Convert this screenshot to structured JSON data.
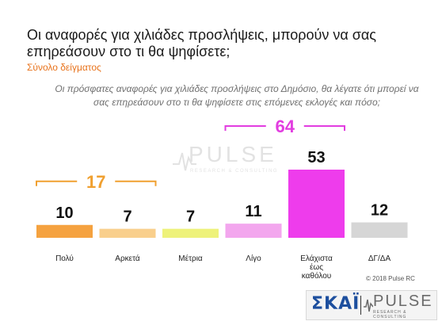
{
  "header": {
    "title": "Οι αναφορές για χιλιάδες προσλήψεις, μπορούν να σας επηρεάσουν στο τι θα ψηφίσετε;",
    "subtitle": "Σύνολο δείγματος",
    "question": "Οι πρόσφατες αναφορές για χιλιάδες προσλήψεις στο Δημόσιο, θα λέγατε ότι μπορεί να σας επηρεάσουν στο τι θα ψηφίσετε στις επόμενες εκλογές και πόσο;"
  },
  "watermark": {
    "brand": "PULSE",
    "tagline": "RESEARCH & CONSULTING"
  },
  "chart_data": {
    "type": "bar",
    "categories": [
      "Πολύ",
      "Αρκετά",
      "Μέτρια",
      "Λίγο",
      "Ελάχιστα έως καθόλου",
      "ΔΓ/ΔΑ"
    ],
    "category_lines": [
      [
        "Πολύ"
      ],
      [
        "Αρκετά"
      ],
      [
        "Μέτρια"
      ],
      [
        "Λίγο"
      ],
      [
        "Ελάχιστα",
        "έως",
        "καθόλου"
      ],
      [
        "ΔΓ/ΔΑ"
      ]
    ],
    "values": [
      10,
      7,
      7,
      11,
      53,
      12
    ],
    "colors": [
      "#f5a23f",
      "#f9cf8c",
      "#eef27a",
      "#f3a6ee",
      "#ee3cec",
      "#d6d6d6"
    ],
    "groups": [
      {
        "value": "17",
        "color": "#f0a030",
        "from": 0,
        "to": 1
      },
      {
        "value": "64",
        "color": "#e23de0",
        "from": 3,
        "to": 4
      }
    ],
    "ylim": [
      0,
      53
    ]
  },
  "footer": {
    "copyright": "© 2018 Pulse RC",
    "logo_left": "ΣΚΑΪ",
    "logo_right": "PULSE",
    "logo_right_sub": "RESEARCH & CONSULTING"
  }
}
